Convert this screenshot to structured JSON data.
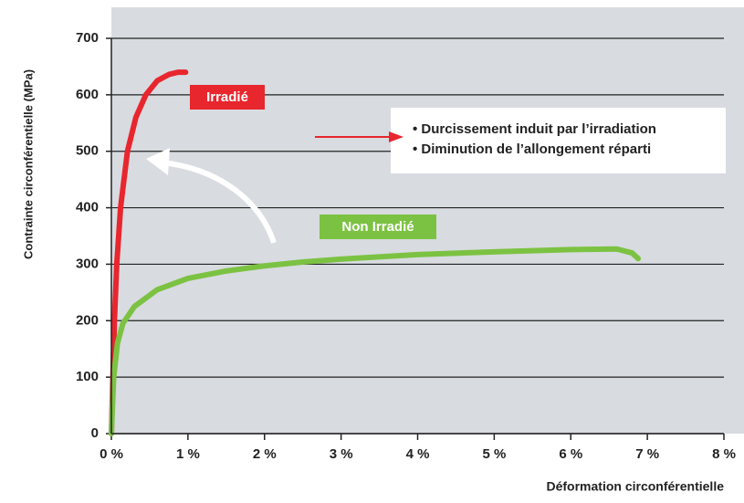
{
  "chart_data": {
    "type": "line",
    "xlabel": "Déformation circonférentielle",
    "ylabel": "Contrainte circonférentielle (MPa)",
    "xlim": [
      0,
      8
    ],
    "ylim": [
      0,
      700
    ],
    "xticks": [
      {
        "value": 0,
        "label": "0 %"
      },
      {
        "value": 1,
        "label": "1 %"
      },
      {
        "value": 2,
        "label": "2 %"
      },
      {
        "value": 3,
        "label": "3 %"
      },
      {
        "value": 4,
        "label": "4 %"
      },
      {
        "value": 5,
        "label": "5 %"
      },
      {
        "value": 6,
        "label": "6 %"
      },
      {
        "value": 7,
        "label": "7 %"
      },
      {
        "value": 8,
        "label": "8 %"
      }
    ],
    "yticks": [
      0,
      100,
      200,
      300,
      400,
      500,
      600,
      700
    ],
    "grid": true,
    "series": [
      {
        "name": "Irradié",
        "color": "#e8262e",
        "x": [
          0,
          0.02,
          0.04,
          0.07,
          0.12,
          0.21,
          0.32,
          0.45,
          0.6,
          0.75,
          0.87,
          0.97
        ],
        "values": [
          0,
          100,
          200,
          300,
          400,
          500,
          560,
          600,
          625,
          636,
          640,
          640
        ]
      },
      {
        "name": "Non Irradié",
        "color": "#7cc242",
        "x": [
          0,
          0.03,
          0.08,
          0.15,
          0.3,
          0.6,
          1.0,
          1.5,
          2,
          2.5,
          3,
          4,
          5,
          6,
          6.6,
          6.8,
          6.88
        ],
        "values": [
          0,
          100,
          160,
          195,
          225,
          255,
          275,
          288,
          297,
          304,
          309,
          317,
          322,
          326,
          327,
          320,
          310
        ]
      }
    ],
    "annotations": [
      "• Durcissement induit par l’irradiation",
      "• Diminution de l’allongement réparti"
    ]
  }
}
